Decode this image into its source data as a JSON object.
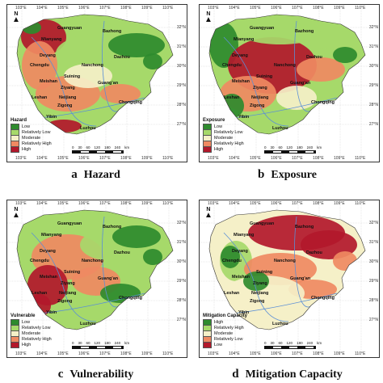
{
  "panels": [
    {
      "letter": "a",
      "title": "Hazard",
      "legend_title": "Hazard",
      "legend": [
        {
          "label": "Low",
          "color": "#2e8b2e"
        },
        {
          "label": "Relatively Low",
          "color": "#a6d96a"
        },
        {
          "label": "Moderate",
          "color": "#f5f0c8"
        },
        {
          "label": "Relatively High",
          "color": "#ef8a62"
        },
        {
          "label": "High",
          "color": "#b2182b"
        }
      ],
      "cities": [
        "Guangyuan",
        "Bazhong",
        "Mianyang",
        "Dazhou",
        "Deyang",
        "Chengdu",
        "Nanchong",
        "Meishan",
        "Suining",
        "Ziyang",
        "Guang'an",
        "Leshan",
        "Neijiang",
        "Zigong",
        "Chongqing",
        "Yibin",
        "Luzhou"
      ]
    },
    {
      "letter": "b",
      "title": "Exposure",
      "legend_title": "Exposure",
      "legend": [
        {
          "label": "Low",
          "color": "#2e8b2e"
        },
        {
          "label": "Relatively Low",
          "color": "#a6d96a"
        },
        {
          "label": "Moderate",
          "color": "#f5f0c8"
        },
        {
          "label": "Relatively High",
          "color": "#ef8a62"
        },
        {
          "label": "High",
          "color": "#b2182b"
        }
      ],
      "cities": [
        "Guangyuan",
        "Bazhong",
        "Mianyang",
        "Dazhou",
        "Deyang",
        "Chengdu",
        "Nanchong",
        "Meishan",
        "Suining",
        "Ziyang",
        "Guang'an",
        "Leshan",
        "Neijiang",
        "Zigong",
        "Chongqing",
        "Yibin",
        "Luzhou"
      ]
    },
    {
      "letter": "c",
      "title": "Vulnerability",
      "legend_title": "Vulnerable",
      "legend": [
        {
          "label": "Low",
          "color": "#2e8b2e"
        },
        {
          "label": "Relatively Low",
          "color": "#a6d96a"
        },
        {
          "label": "Moderate",
          "color": "#f5f0c8"
        },
        {
          "label": "Relatively High",
          "color": "#ef8a62"
        },
        {
          "label": "High",
          "color": "#b2182b"
        }
      ],
      "cities": [
        "Guangyuan",
        "Bazhong",
        "Mianyang",
        "Dazhou",
        "Deyang",
        "Chengdu",
        "Nanchong",
        "Meishan",
        "Suining",
        "Ziyang",
        "Guang'an",
        "Leshan",
        "Neijiang",
        "Zigong",
        "Chongqing",
        "Yibin",
        "Luzhou"
      ]
    },
    {
      "letter": "d",
      "title": "Mitigation Capacity",
      "legend_title": "Mitigation Capacity",
      "legend": [
        {
          "label": "High",
          "color": "#2e8b2e"
        },
        {
          "label": "Relatively High",
          "color": "#a6d96a"
        },
        {
          "label": "Moderate",
          "color": "#f5f0c8"
        },
        {
          "label": "Relatively Low",
          "color": "#ef8a62"
        },
        {
          "label": "Low",
          "color": "#b2182b"
        }
      ],
      "cities": [
        "Guangyuan",
        "Bazhong",
        "Mianyang",
        "Dazhou",
        "Deyang",
        "Chengdu",
        "Nanchong",
        "Meishan",
        "Suining",
        "Ziyang",
        "Guang'an",
        "Leshan",
        "Neijiang",
        "Zigong",
        "Chongqing",
        "Yibin",
        "Luzhou"
      ]
    }
  ],
  "lon_ticks": [
    "103°E",
    "104°E",
    "105°E",
    "106°E",
    "107°E",
    "108°E",
    "109°E",
    "110°E"
  ],
  "lat_ticks": [
    "32°N",
    "31°N",
    "30°N",
    "29°N",
    "28°N",
    "27°N"
  ],
  "north_label": "N",
  "scale": {
    "ticks": [
      "0",
      "30",
      "60",
      "120",
      "180",
      "240"
    ],
    "unit": "km"
  }
}
